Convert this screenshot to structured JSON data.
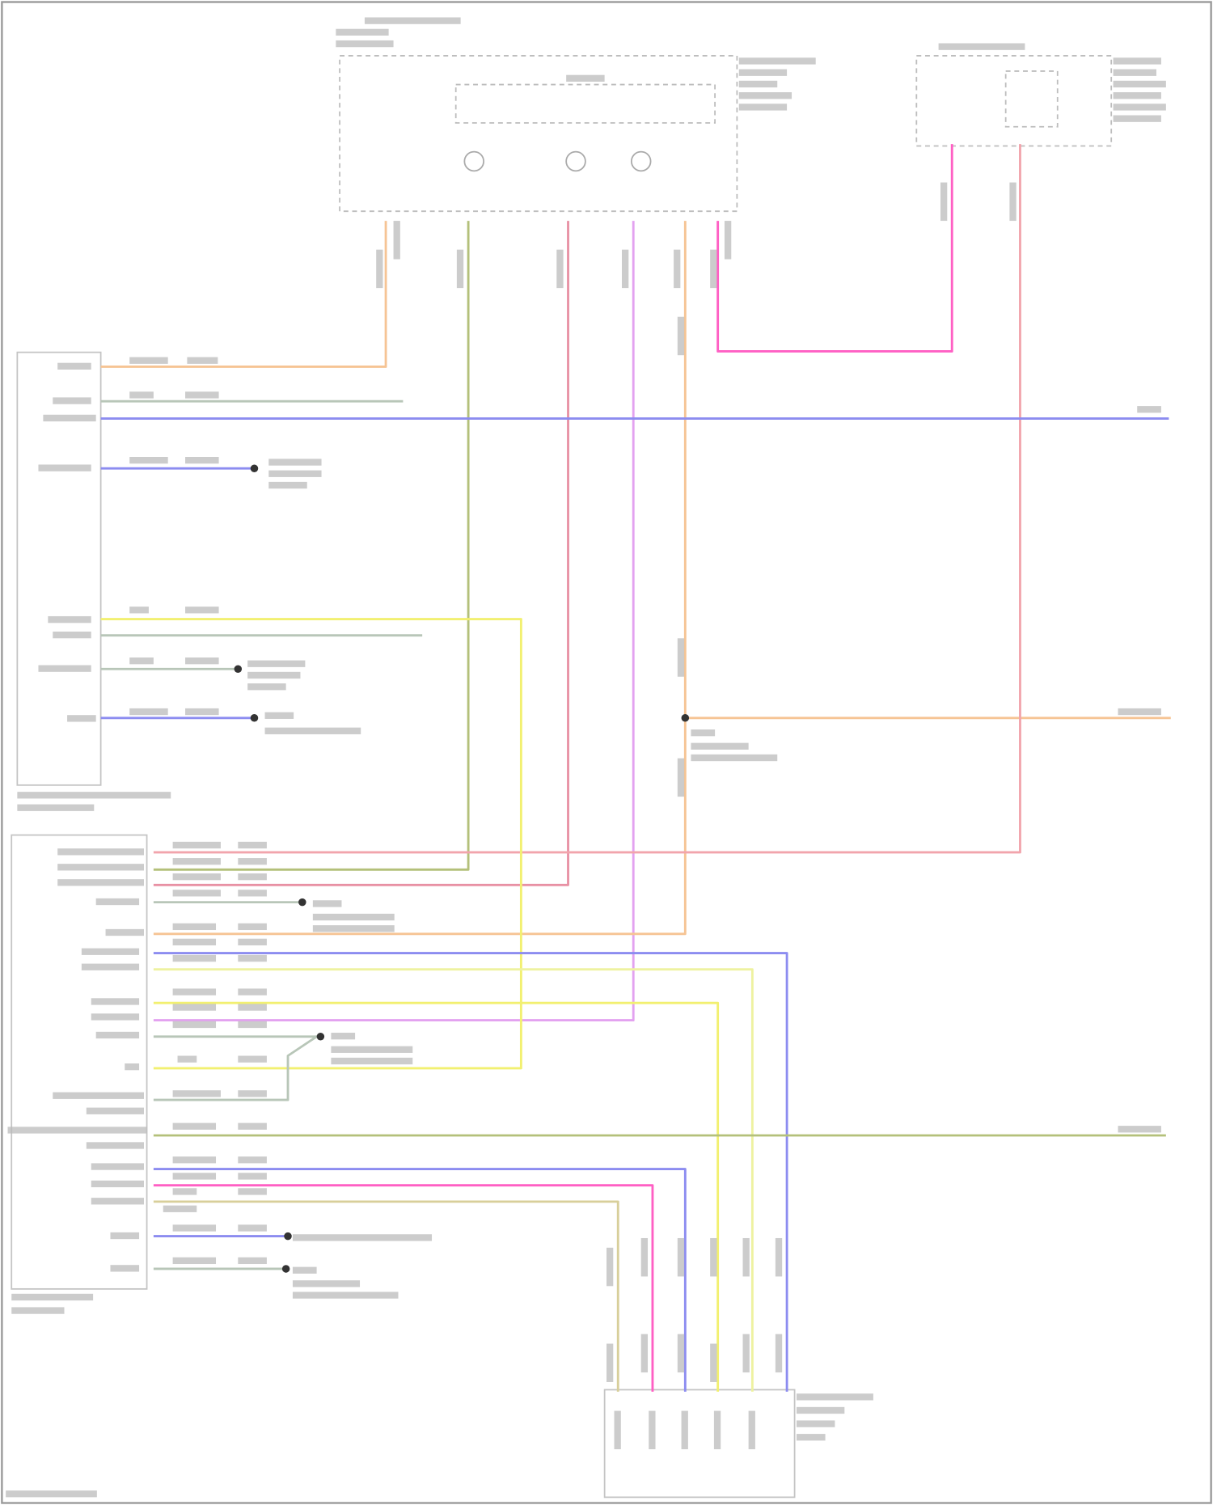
{
  "diagram": {
    "type": "wiring-diagram",
    "text_legible": false,
    "wire_colors": {
      "orange": "#f6c494",
      "olive": "#b4c07a",
      "red": "#e891a4",
      "violet": "#e3a2f0",
      "pink": "#ff5fc4",
      "light_red": "#f2a4ac",
      "blue": "#8c8cf0",
      "yellow": "#f2f070",
      "pale_yellow": "#eef2a0",
      "tan": "#d8cf9a",
      "gray": "#b8c6b8"
    }
  }
}
